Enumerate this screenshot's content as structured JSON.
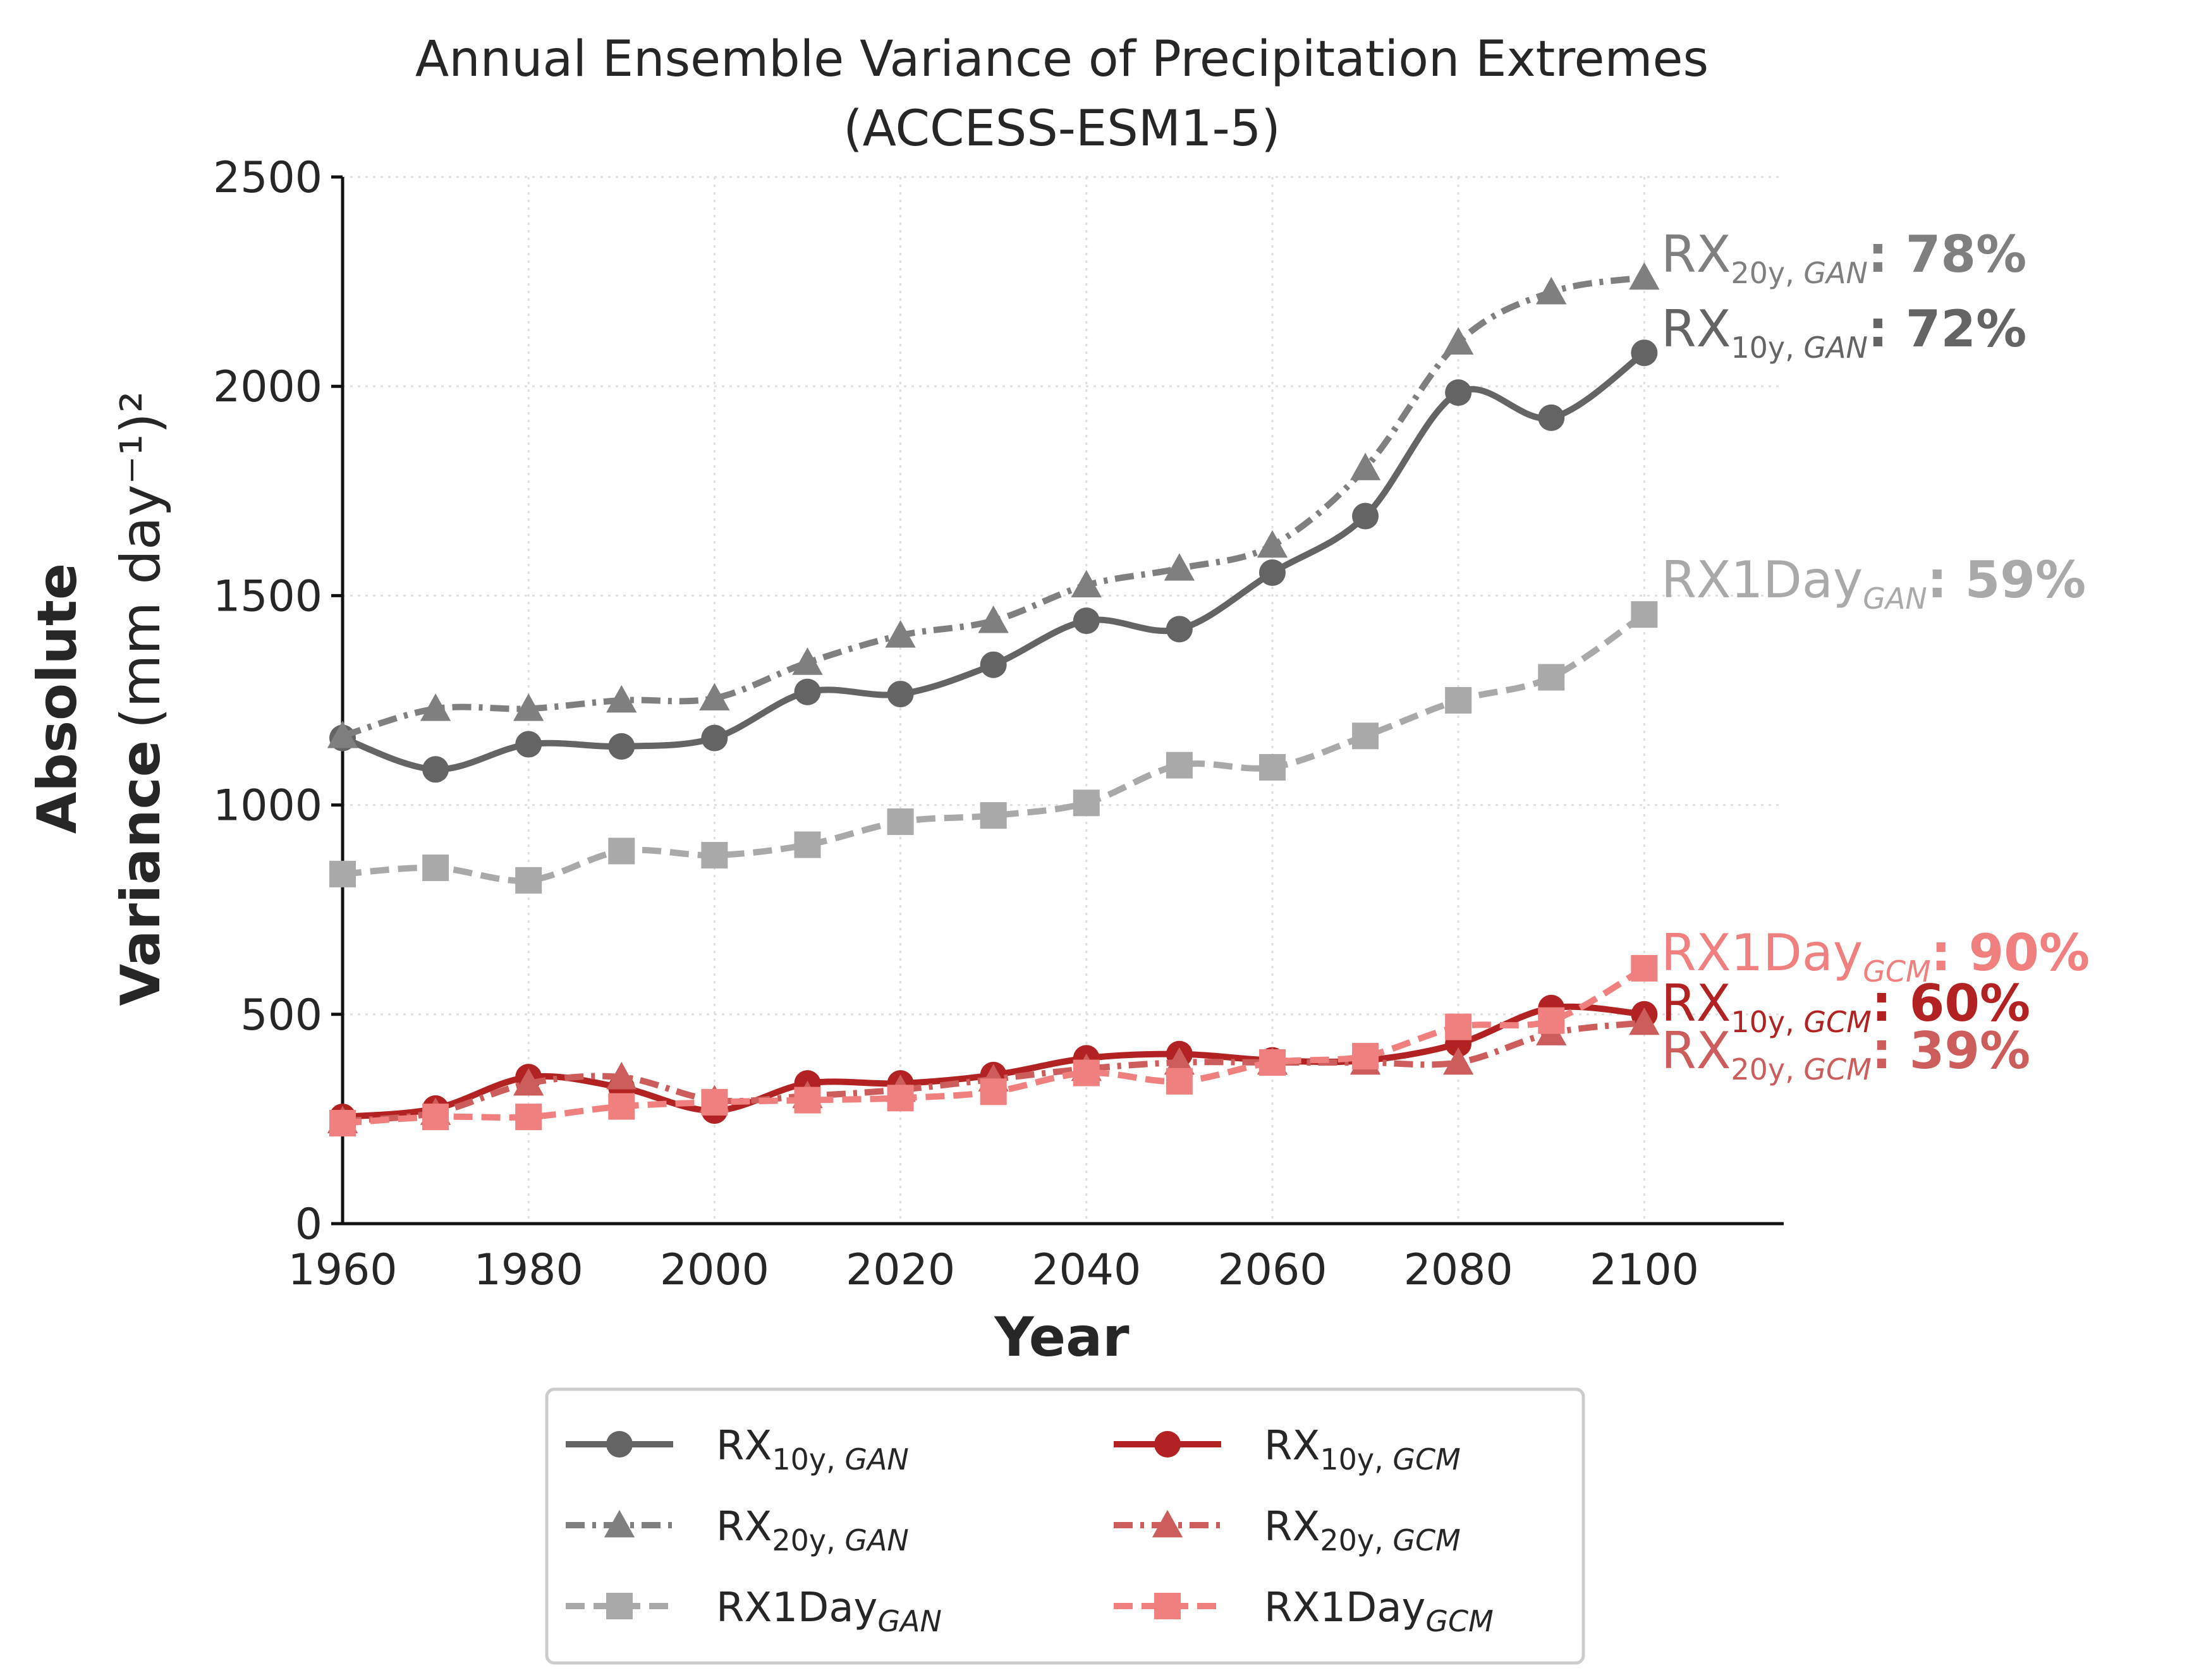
{
  "chart_data": {
    "type": "line",
    "title": "Annual Ensemble Variance of Precipitation Extremes",
    "subtitle": "(ACCESS-ESM1-5)",
    "xlabel": "Year",
    "ylabel_bold_top": "Absolute",
    "ylabel_bold": "Variance",
    "ylabel_unit": "(mm day⁻¹)²",
    "xlim": [
      1960,
      2115
    ],
    "ylim": [
      0,
      2500
    ],
    "xticks": [
      1960,
      1980,
      2000,
      2020,
      2040,
      2060,
      2080,
      2100
    ],
    "yticks": [
      0,
      500,
      1000,
      1500,
      2000,
      2500
    ],
    "grid": true,
    "legend_position": "below plot, two columns",
    "x": [
      1960,
      1970,
      1980,
      1990,
      2000,
      2010,
      2020,
      2030,
      2040,
      2050,
      2060,
      2070,
      2080,
      2090,
      2100
    ],
    "series": [
      {
        "id": "rx10_gan",
        "name": "RX10y, GAN",
        "base": "RX",
        "sub": "10y, ",
        "subi": "GAN",
        "color": "#646464",
        "dash": "solid",
        "marker": "circle",
        "values": [
          1160,
          1085,
          1145,
          1140,
          1160,
          1270,
          1265,
          1335,
          1440,
          1420,
          1555,
          1690,
          1985,
          1925,
          2080
        ],
        "end_pct": "72%"
      },
      {
        "id": "rx20_gan",
        "name": "RX20y, GAN",
        "base": "RX",
        "sub": "20y, ",
        "subi": "GAN",
        "color": "#7f7f7f",
        "dash": "dashdot",
        "marker": "triangle",
        "values": [
          1165,
          1230,
          1230,
          1250,
          1255,
          1340,
          1405,
          1440,
          1525,
          1565,
          1620,
          1805,
          2105,
          2225,
          2260
        ],
        "end_pct": "78%"
      },
      {
        "id": "rx1_gan",
        "name": "RX1DayGAN",
        "base": "RX1Day",
        "sub": "",
        "subi": "GAN",
        "color": "#a9a9a9",
        "dash": "dashed",
        "marker": "square",
        "values": [
          835,
          850,
          820,
          890,
          880,
          905,
          960,
          975,
          1005,
          1095,
          1090,
          1165,
          1250,
          1305,
          1455
        ],
        "end_pct": "59%"
      },
      {
        "id": "rx10_gcm",
        "name": "RX10y, GCM",
        "base": "RX",
        "sub": "10y, ",
        "subi": "GCM",
        "color": "#b22222",
        "dash": "solid",
        "marker": "circle",
        "values": [
          255,
          275,
          350,
          325,
          270,
          335,
          335,
          355,
          395,
          405,
          390,
          390,
          430,
          515,
          500
        ],
        "end_pct": "60%"
      },
      {
        "id": "rx20_gcm",
        "name": "RX20y, GCM",
        "base": "RX",
        "sub": "20y, ",
        "subi": "GCM",
        "color": "#cd5c5c",
        "dash": "dashdot",
        "marker": "triangle",
        "values": [
          245,
          265,
          335,
          350,
          295,
          305,
          320,
          345,
          370,
          385,
          385,
          385,
          385,
          455,
          480
        ],
        "end_pct": "39%"
      },
      {
        "id": "rx1_gcm",
        "name": "RX1DayGCM",
        "base": "RX1Day",
        "sub": "",
        "subi": "GCM",
        "color": "#f08080",
        "dash": "dashed",
        "marker": "square",
        "values": [
          240,
          255,
          255,
          280,
          290,
          295,
          300,
          315,
          360,
          340,
          385,
          400,
          470,
          485,
          610
        ],
        "end_pct": "90%"
      }
    ]
  }
}
